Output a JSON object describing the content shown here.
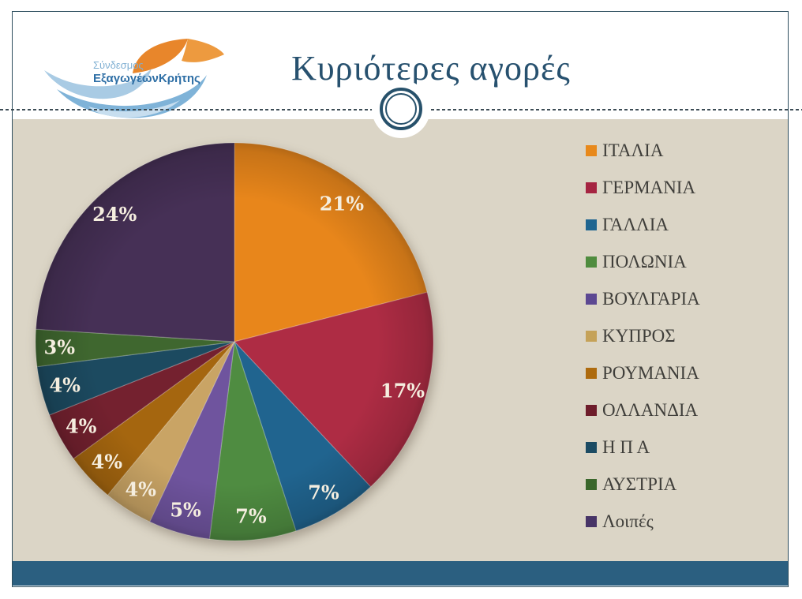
{
  "logo": {
    "line1": "Σύνδεσμος",
    "line2": "ΕξαγωγέωνΚρήτης"
  },
  "title": "Κυριότερες αγορές",
  "chart_data": {
    "type": "pie",
    "title": "Κυριότερες αγορές",
    "start_angle_deg": 0,
    "direction": "clockwise",
    "legend_position": "right",
    "series": [
      {
        "label": "ΙΤΑΛΙΑ",
        "value": 21,
        "pct_label": "21%",
        "color": "#E8861B",
        "legend_color": "#E8891B"
      },
      {
        "label": "ΓΕΡΜΑΝΙΑ",
        "value": 17,
        "pct_label": "17%",
        "color": "#AE2C44",
        "legend_color": "#A52441"
      },
      {
        "label": "ΓΑΛΛΙΑ",
        "value": 7,
        "pct_label": "7%",
        "color": "#20648F",
        "legend_color": "#1F6590"
      },
      {
        "label": "ΠΟΛΩΝΙΑ",
        "value": 7,
        "pct_label": "7%",
        "color": "#4F8C41",
        "legend_color": "#4F8C3E"
      },
      {
        "label": "ΒΟΥΛΓΑΡΙΑ",
        "value": 5,
        "pct_label": "5%",
        "color": "#6F549E",
        "legend_color": "#5C4892"
      },
      {
        "label": "ΚΥΠΡΟΣ",
        "value": 4,
        "pct_label": "4%",
        "color": "#C9A465",
        "legend_color": "#C5A258"
      },
      {
        "label": "ΡΟΥΜΑΝΙΑ",
        "value": 4,
        "pct_label": "4%",
        "color": "#A5660F",
        "legend_color": "#AE6B0E"
      },
      {
        "label": "ΟΛΛΑΝΔΙΑ",
        "value": 4,
        "pct_label": "4%",
        "color": "#74212F",
        "legend_color": "#6E1D2B"
      },
      {
        "label": "Η Π Α",
        "value": 4,
        "pct_label": "4%",
        "color": "#1C4A60",
        "legend_color": "#1B4B63"
      },
      {
        "label": "ΑΥΣΤΡΙΑ",
        "value": 3,
        "pct_label": "3%",
        "color": "#3F672F",
        "legend_color": "#3A672B"
      },
      {
        "label": "Λοιπές",
        "value": 24,
        "pct_label": "24%",
        "color": "#463056",
        "legend_color": "#473467"
      }
    ]
  },
  "theme": {
    "content_bg": "#DBD5C6",
    "footer_bar": "#2B5F80",
    "title_color": "#27516F",
    "border_color": "#2E4E5E",
    "pie_label_color": "#F5EEDF",
    "legend_text_color": "#3F3E3A",
    "ornament_ring_color": "#27516B"
  }
}
